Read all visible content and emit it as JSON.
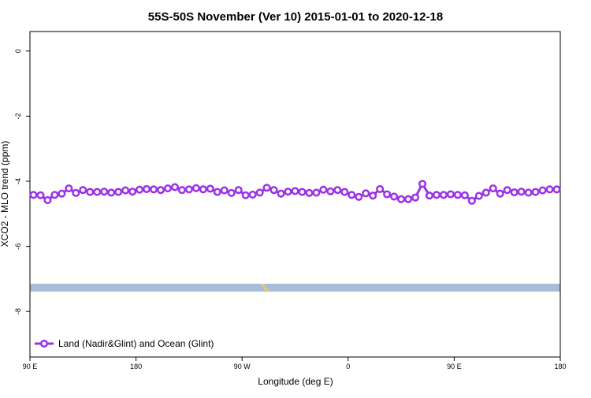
{
  "chart_data": {
    "type": "line",
    "title": "55S-50S November (Ver 10)   2015-01-01 to 2020-12-18",
    "x_label": "Longitude (deg E)",
    "y_label": "XCO2 - MLO trend (ppm)",
    "x": [
      93,
      99,
      105,
      111,
      117,
      123,
      129,
      135,
      141,
      147,
      153,
      159,
      165,
      171,
      177,
      183,
      189,
      195,
      201,
      207,
      213,
      219,
      225,
      231,
      237,
      243,
      249,
      255,
      261,
      267,
      273,
      279,
      285,
      291,
      297,
      303,
      309,
      315,
      321,
      327,
      333,
      339,
      345,
      351,
      357,
      363,
      369,
      375,
      381,
      387,
      393,
      399,
      405,
      411,
      417,
      423,
      429,
      435,
      441,
      447,
      453,
      459,
      465,
      471,
      477,
      483,
      489,
      495,
      501,
      507,
      513,
      519,
      525,
      531,
      537
    ],
    "series": [
      {
        "name": "Land (Nadir&Glint) and Ocean (Glint)",
        "color": "#9b30e8",
        "values": [
          -4.42,
          -4.43,
          -4.58,
          -4.42,
          -4.38,
          -4.22,
          -4.36,
          -4.27,
          -4.33,
          -4.33,
          -4.32,
          -4.35,
          -4.33,
          -4.28,
          -4.32,
          -4.26,
          -4.24,
          -4.25,
          -4.27,
          -4.22,
          -4.18,
          -4.27,
          -4.25,
          -4.21,
          -4.25,
          -4.23,
          -4.33,
          -4.28,
          -4.36,
          -4.27,
          -4.43,
          -4.41,
          -4.35,
          -4.2,
          -4.27,
          -4.38,
          -4.32,
          -4.3,
          -4.33,
          -4.36,
          -4.35,
          -4.26,
          -4.31,
          -4.27,
          -4.33,
          -4.42,
          -4.48,
          -4.37,
          -4.44,
          -4.24,
          -4.4,
          -4.47,
          -4.55,
          -4.55,
          -4.5,
          -4.08,
          -4.44,
          -4.42,
          -4.42,
          -4.4,
          -4.42,
          -4.43,
          -4.6,
          -4.45,
          -4.35,
          -4.22,
          -4.38,
          -4.27,
          -4.34,
          -4.32,
          -4.35,
          -4.33,
          -4.28,
          -4.25,
          -4.25
        ]
      }
    ],
    "xlim": [
      90,
      540
    ],
    "xticks": [
      {
        "value": 90,
        "label": "90 E"
      },
      {
        "value": 180,
        "label": "180"
      },
      {
        "value": 270,
        "label": "90 W"
      },
      {
        "value": 360,
        "label": "0"
      },
      {
        "value": 450,
        "label": "90 E"
      },
      {
        "value": 540,
        "label": "180"
      }
    ],
    "ylim": [
      -9.4,
      0.6
    ],
    "yticks": [
      0,
      -2,
      -4,
      -6,
      -8
    ],
    "legend": "bottom-left"
  }
}
